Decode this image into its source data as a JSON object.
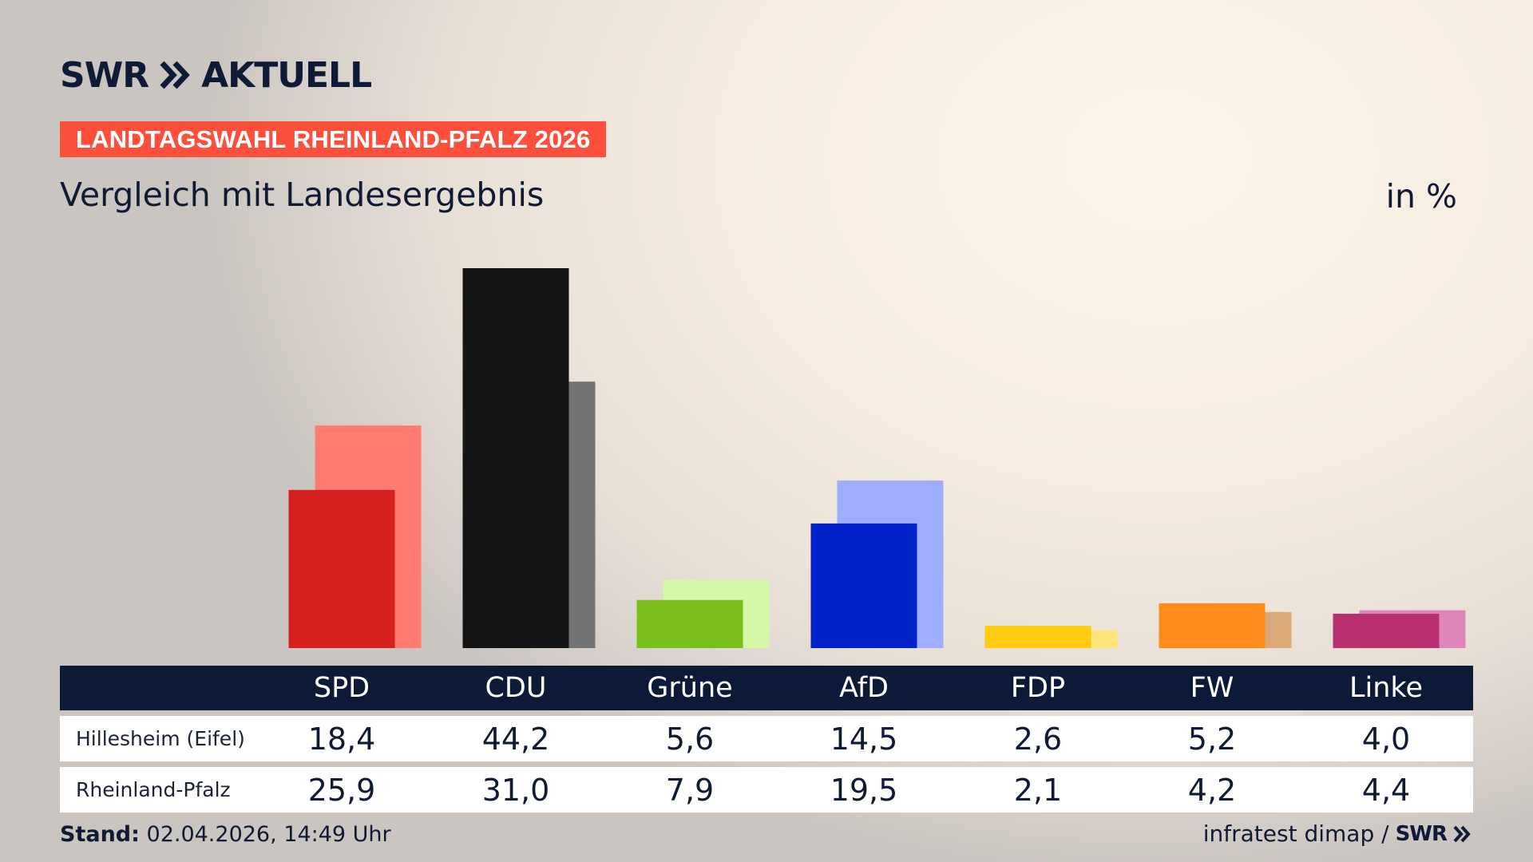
{
  "header": {
    "brand": "SWR",
    "product": "AKTUELL",
    "topic_badge": "LANDTAGSWAHL RHEINLAND-PFALZ 2026",
    "title": "Vergleich mit Landesergebnis",
    "unit": "in %"
  },
  "footer": {
    "stand_label": "Stand:",
    "stand_value": "02.04.2026, 14:49 Uhr",
    "source": "infratest dimap /",
    "source_brand": "SWR"
  },
  "colors": {
    "background": "#f6ece1",
    "badge": "#fc4f3c",
    "table_header": "#0c1a38"
  },
  "chart_data": {
    "type": "bar",
    "title": "Vergleich mit Landesergebnis",
    "ylabel": "in %",
    "ylim": [
      0,
      44.2
    ],
    "grid": false,
    "categories": [
      "SPD",
      "CDU",
      "Grüne",
      "AfD",
      "FDP",
      "FW",
      "Linke"
    ],
    "series": [
      {
        "name": "Rheinland-Pfalz",
        "values": [
          25.9,
          31.0,
          7.9,
          19.5,
          2.1,
          4.2,
          4.4
        ],
        "colors": [
          "#ff7a70",
          "#747474",
          "#d5f7a8",
          "#9eadff",
          "#ffe47a",
          "#dcaa78",
          "#de86ba"
        ]
      },
      {
        "name": "Hillesheim (Eifel)",
        "values": [
          18.4,
          44.2,
          5.6,
          14.5,
          2.6,
          5.2,
          4.0
        ],
        "colors": [
          "#d71f1f",
          "#141414",
          "#7bbf1f",
          "#0022c8",
          "#ffcc11",
          "#ff8c1a",
          "#b83070"
        ]
      }
    ]
  }
}
